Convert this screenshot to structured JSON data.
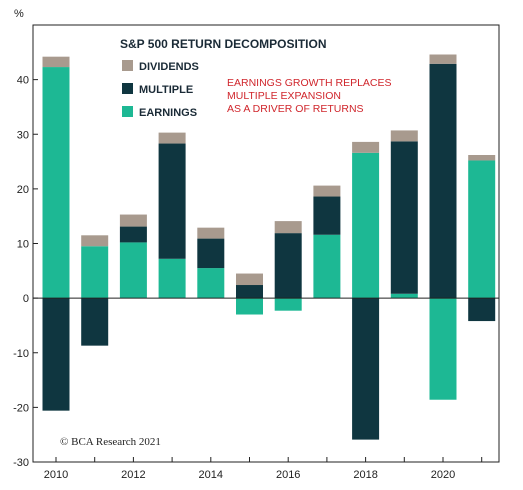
{
  "chart_data": {
    "type": "bar",
    "stacked": true,
    "title": "S&P 500 RETURN DECOMPOSITION",
    "ylabel": "%",
    "ylim": [
      -30,
      50
    ],
    "yticks": [
      -30,
      -20,
      -10,
      0,
      10,
      20,
      30,
      40
    ],
    "categories": [
      "2010",
      "2011",
      "2012",
      "2013",
      "2014",
      "2015",
      "2016",
      "2017",
      "2018",
      "2019",
      "2020",
      "2021"
    ],
    "xtick_labels": [
      "2010",
      "2012",
      "2014",
      "2016",
      "2018",
      "2020"
    ],
    "series": [
      {
        "name": "EARNINGS",
        "color": "#1db894",
        "values": [
          42.3,
          9.5,
          10.2,
          7.2,
          5.5,
          -3.0,
          -2.3,
          11.6,
          26.6,
          0.8,
          -18.6,
          25.2
        ]
      },
      {
        "name": "MULTIPLE",
        "color": "#0f3640",
        "values": [
          -20.6,
          -8.7,
          2.9,
          21.1,
          5.4,
          2.4,
          11.9,
          7.0,
          -25.9,
          27.9,
          42.9,
          -4.2
        ]
      },
      {
        "name": "DIVIDENDS",
        "color": "#a89a8e",
        "values": [
          1.9,
          2.0,
          2.2,
          2.0,
          2.0,
          2.1,
          2.2,
          2.0,
          2.0,
          2.0,
          1.7,
          1.0
        ]
      }
    ],
    "legend": [
      "DIVIDENDS",
      "MULTIPLE",
      "EARNINGS"
    ],
    "legend_position": "top-left",
    "annotation": [
      "EARNINGS GROWTH REPLACES",
      "MULTIPLE EXPANSION",
      "AS A DRIVER OF RETURNS"
    ],
    "annotation_color": "#d0262c",
    "source": "© BCA Research 2021",
    "grid": false
  }
}
